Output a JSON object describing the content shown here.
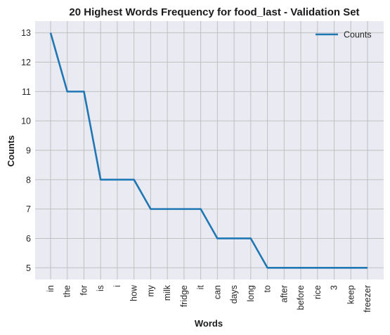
{
  "chart_data": {
    "type": "line",
    "title": "20 Highest Words Frequency for food_last - Validation Set",
    "xlabel": "Words",
    "ylabel": "Counts",
    "categories": [
      "in",
      "the",
      "for",
      "is",
      "i",
      "how",
      "my",
      "milk",
      "fridge",
      "it",
      "can",
      "days",
      "long",
      "to",
      "after",
      "before",
      "rice",
      "3",
      "keep",
      "freezer"
    ],
    "series": [
      {
        "name": "Counts",
        "values": [
          13,
          11,
          11,
          8,
          8,
          8,
          7,
          7,
          7,
          7,
          6,
          6,
          6,
          5,
          5,
          5,
          5,
          5,
          5,
          5
        ],
        "color": "#1f77b4"
      }
    ],
    "yticks": [
      5,
      6,
      7,
      8,
      9,
      10,
      11,
      12,
      13
    ],
    "ylim": [
      4.6,
      13.4
    ],
    "grid": true,
    "legend_position": "top-right",
    "background_color": "#eaeaf2",
    "grid_color": "#c0c0c0"
  }
}
